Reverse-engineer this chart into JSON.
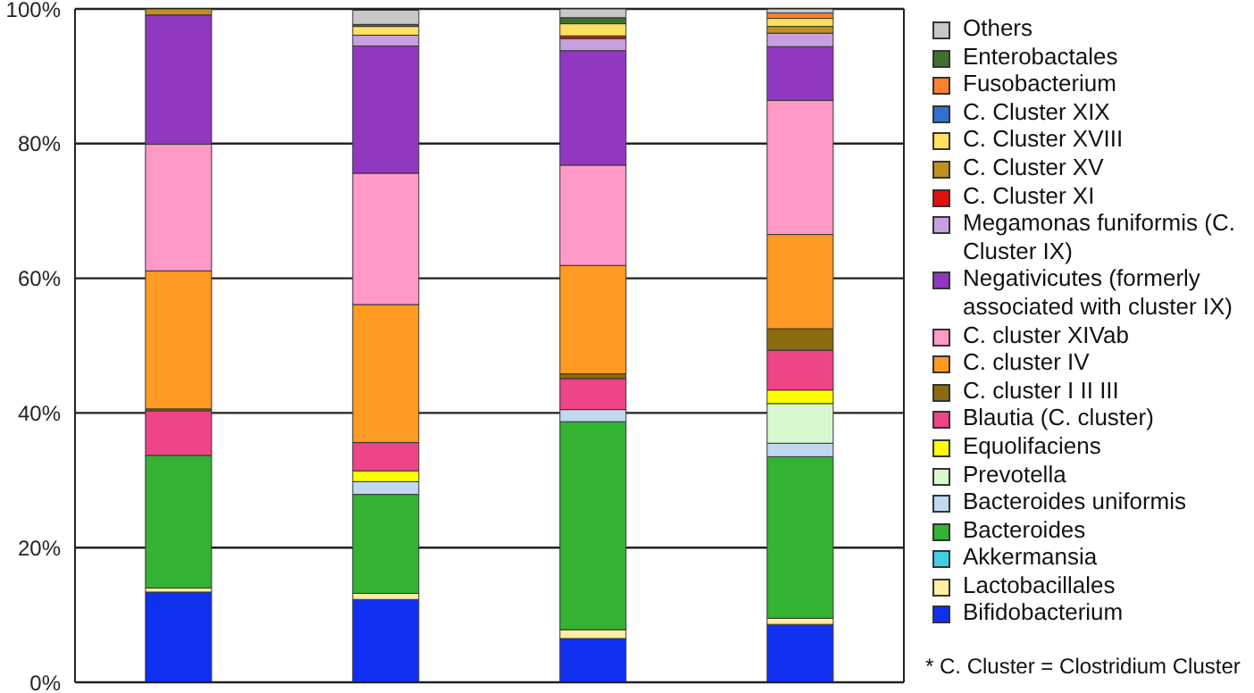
{
  "chart_data": {
    "type": "bar",
    "stacked": true,
    "categories": [
      null,
      null,
      null,
      null
    ],
    "ylim": [
      0,
      100
    ],
    "yticks": [
      {
        "value": 0,
        "label": "0%"
      },
      {
        "value": 20,
        "label": "20%"
      },
      {
        "value": 40,
        "label": "40%"
      },
      {
        "value": 60,
        "label": "60%"
      },
      {
        "value": 80,
        "label": "80%"
      },
      {
        "value": 100,
        "label": "100%"
      }
    ],
    "grid": "y",
    "legend": "right",
    "tick_labels": "y",
    "annotations": [
      "* C. Cluster = Clostridium Cluster"
    ],
    "series": [
      {
        "name": "Bifidobacterium",
        "color": "#1030f0",
        "values": [
          13.4,
          12.3,
          6.5,
          8.6
        ]
      },
      {
        "name": "Lactobacillales",
        "color": "#fff0a0",
        "values": [
          0.6,
          0.9,
          1.3,
          0.9
        ]
      },
      {
        "name": "Akkermansia",
        "color": "#40d0e0",
        "values": [
          null,
          null,
          null,
          null
        ]
      },
      {
        "name": "Bacteroides",
        "color": "#33b233",
        "values": [
          19.7,
          14.7,
          30.9,
          24.0
        ]
      },
      {
        "name": "Bacteroides uniformis",
        "color": "#c0d8f0",
        "values": [
          null,
          1.9,
          1.8,
          2.0
        ]
      },
      {
        "name": "Prevotella",
        "color": "#d8f8d0",
        "values": [
          null,
          null,
          null,
          5.9
        ]
      },
      {
        "name": "Equolifaciens",
        "color": "#ffff00",
        "values": [
          null,
          1.6,
          null,
          2.0
        ]
      },
      {
        "name": "Blautia (C. cluster)",
        "color": "#ee4488",
        "values": [
          6.6,
          4.2,
          4.6,
          5.9
        ]
      },
      {
        "name": "C. cluster I II III",
        "color": "#8b6a10",
        "values": [
          0.3,
          null,
          0.7,
          3.2
        ]
      },
      {
        "name": "C. cluster IV",
        "color": "#ff9a22",
        "values": [
          20.5,
          20.5,
          16.1,
          14.0
        ]
      },
      {
        "name": "C. cluster XIVab",
        "color": "#ff99c8",
        "values": [
          18.8,
          19.5,
          14.9,
          19.9
        ]
      },
      {
        "name": "Negativicutes (formerly associated with cluster IX)",
        "color": "#9038c0",
        "values": [
          19.2,
          18.9,
          17.0,
          8.0
        ]
      },
      {
        "name": "Megamonas funiformis (C. Cluster IX)",
        "color": "#c8a0e0",
        "values": [
          null,
          1.6,
          1.8,
          2.0
        ]
      },
      {
        "name": "C. Cluster XI",
        "color": "#e01010",
        "values": [
          null,
          null,
          0.4,
          null
        ]
      },
      {
        "name": "C. Cluster XV",
        "color": "#c09020",
        "values": [
          0.9,
          null,
          null,
          1.0
        ]
      },
      {
        "name": "C. Cluster XVIII",
        "color": "#ffe060",
        "values": [
          null,
          1.3,
          1.8,
          1.2
        ]
      },
      {
        "name": "C. Cluster XIX",
        "color": "#3070d0",
        "values": [
          null,
          null,
          null,
          null
        ]
      },
      {
        "name": "Fusobacterium",
        "color": "#ff8030",
        "values": [
          null,
          null,
          null,
          0.8
        ]
      },
      {
        "name": "Enterobactales",
        "color": "#407030",
        "values": [
          null,
          0.3,
          0.9,
          null
        ]
      },
      {
        "name": "Others",
        "color": "#c8c8c8",
        "values": [
          null,
          2.1,
          1.3,
          0.6
        ]
      }
    ]
  }
}
